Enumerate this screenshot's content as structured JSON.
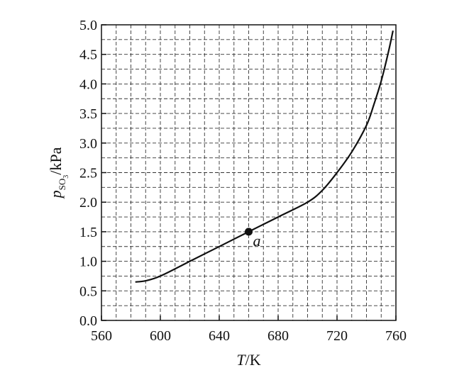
{
  "chart_data": {
    "type": "line",
    "title": "",
    "xlabel": {
      "var": "T",
      "unit": "/K"
    },
    "ylabel": {
      "var": "p",
      "sub1": "SO",
      "sub2": "3",
      "unit": "/kPa"
    },
    "xlim": [
      560,
      760
    ],
    "ylim": [
      0,
      5
    ],
    "x_ticks": [
      "560",
      "600",
      "640",
      "680",
      "720",
      "760"
    ],
    "y_ticks": [
      "0.0",
      "0.5",
      "1.0",
      "1.5",
      "2.0",
      "2.5",
      "3.0",
      "3.5",
      "4.0",
      "4.5",
      "5.0"
    ],
    "x_tick_values": [
      560,
      600,
      640,
      680,
      720,
      760
    ],
    "y_tick_values": [
      0,
      0.5,
      1,
      1.5,
      2,
      2.5,
      3,
      3.5,
      4,
      4.5,
      5
    ],
    "grid": true,
    "grid_x_step": 10,
    "grid_y_step": 0.25,
    "series": [
      {
        "x": [
          583,
          590,
          600,
          620,
          640,
          660,
          680,
          700,
          710,
          720,
          730,
          740,
          745,
          750,
          755,
          758
        ],
        "y": [
          0.65,
          0.67,
          0.75,
          1.0,
          1.25,
          1.5,
          1.75,
          2.0,
          2.2,
          2.5,
          2.85,
          3.3,
          3.65,
          4.05,
          4.55,
          4.9
        ]
      }
    ],
    "annotations": [
      {
        "label": "a",
        "x": 660,
        "y": 1.5
      }
    ]
  }
}
